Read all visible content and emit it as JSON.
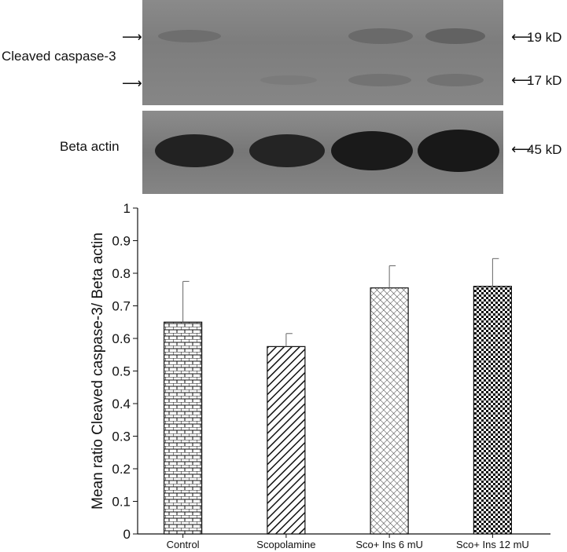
{
  "blot": {
    "cleaved_label": "Cleaved caspase-3",
    "actin_label": "Beta actin",
    "marker_19": "19 kD",
    "marker_17": "17 kD",
    "marker_45": "45 kD"
  },
  "chart_data": {
    "type": "bar",
    "categories": [
      "Control",
      "Scopolamine",
      "Sco+ Ins 6 mU",
      "Sco+ Ins 12 mU"
    ],
    "values": [
      0.65,
      0.575,
      0.755,
      0.76
    ],
    "errors": [
      0.125,
      0.04,
      0.068,
      0.085
    ],
    "ylabel": "Mean ratio Cleaved caspase-3/ Beta actin",
    "xlabel": "",
    "ylim": [
      0,
      1
    ],
    "yticks": [
      "0",
      "0.1",
      "0.2",
      "0.3",
      "0.4",
      "0.5",
      "0.6",
      "0.7",
      "0.8",
      "0.9",
      "1"
    ],
    "patterns": [
      "brick",
      "diagonal",
      "crosshatch",
      "checker"
    ],
    "grid": false
  }
}
